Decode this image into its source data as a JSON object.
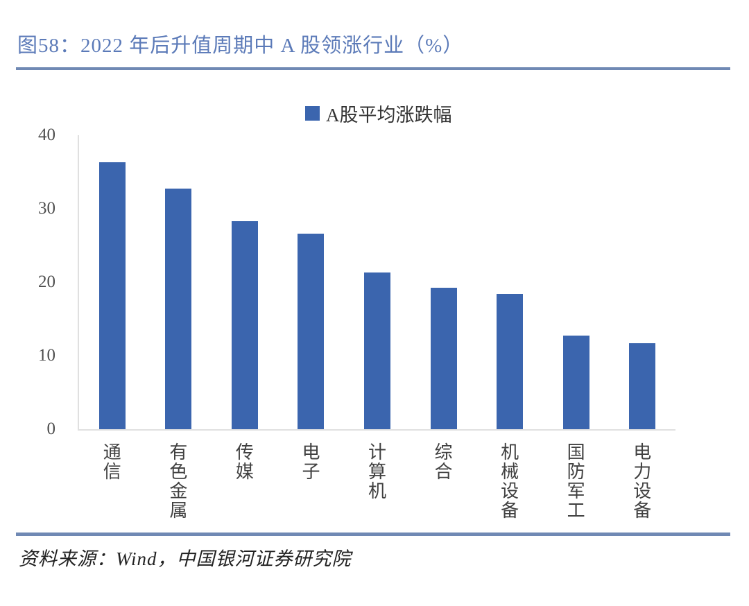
{
  "page": {
    "title": "图58：2022 年后升值周期中 A 股领涨行业（%）",
    "source": "资料来源：Wind，中国银河证券研究院"
  },
  "legend": {
    "label": "A股平均涨跌幅"
  },
  "colors": {
    "bar": "#3B65AE",
    "title_text": "#5B7AB8",
    "rule": "#7089B4",
    "axis_line": "#E0E0E0",
    "tick_text": "#4D4D4D",
    "category_text": "#404040",
    "legend_text": "#333333",
    "source_text": "#222222"
  },
  "chart_data": {
    "type": "bar",
    "title": "图58：2022 年后升值周期中 A 股领涨行业（%）",
    "legend": [
      "A股平均涨跌幅"
    ],
    "categories": [
      "通信",
      "有色金属",
      "传媒",
      "电子",
      "计算机",
      "综合",
      "机械设备",
      "国防军工",
      "电力设备"
    ],
    "values": [
      36.3,
      32.7,
      28.3,
      26.6,
      21.3,
      19.2,
      18.4,
      12.7,
      11.7
    ],
    "xlabel": "",
    "ylabel": "",
    "ylim": [
      0,
      40
    ],
    "yticks": [
      0,
      10,
      20,
      30,
      40
    ],
    "grid": false,
    "legend_position": "top-center",
    "bar_color": "#3B65AE"
  }
}
